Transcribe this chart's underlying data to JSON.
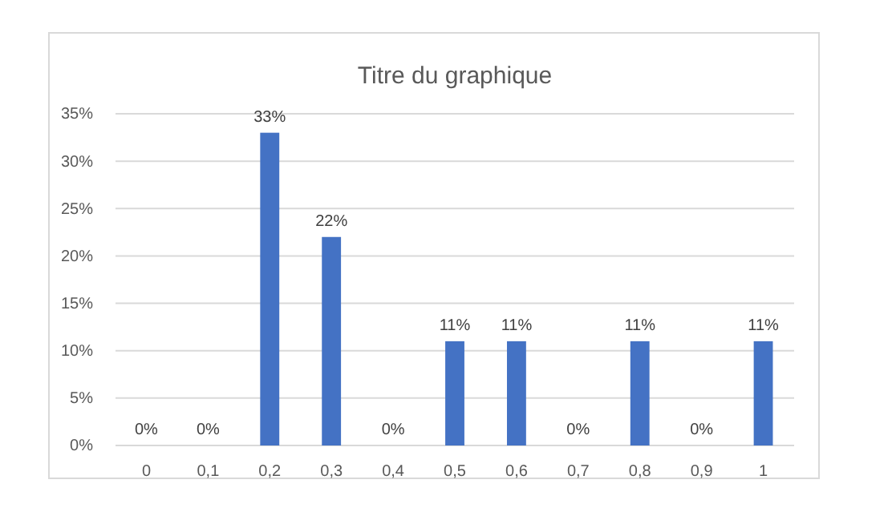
{
  "chart_data": {
    "type": "bar",
    "title": "Titre du graphique",
    "categories": [
      "0",
      "0,1",
      "0,2",
      "0,3",
      "0,4",
      "0,5",
      "0,6",
      "0,7",
      "0,8",
      "0,9",
      "1"
    ],
    "values": [
      0,
      0,
      33,
      22,
      0,
      11,
      11,
      0,
      11,
      0,
      11
    ],
    "value_labels": [
      "0%",
      "0%",
      "33%",
      "22%",
      "0%",
      "11%",
      "11%",
      "0%",
      "11%",
      "0%",
      "11%"
    ],
    "color": "#4472c4",
    "ylim": [
      0,
      35
    ],
    "yticks": [
      {
        "value": 0,
        "label": "0%"
      },
      {
        "value": 5,
        "label": "5%"
      },
      {
        "value": 10,
        "label": "10%"
      },
      {
        "value": 15,
        "label": "15%"
      },
      {
        "value": 20,
        "label": "20%"
      },
      {
        "value": 25,
        "label": "25%"
      },
      {
        "value": 30,
        "label": "30%"
      },
      {
        "value": 35,
        "label": "35%"
      }
    ],
    "grid": "y"
  }
}
